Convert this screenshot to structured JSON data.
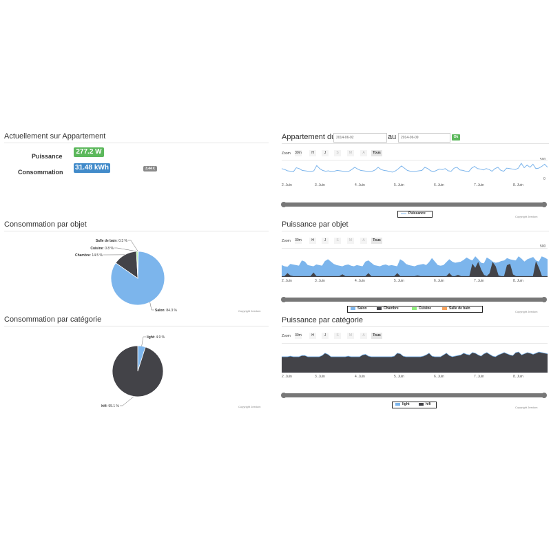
{
  "left": {
    "current": {
      "title": "Actuellement sur Appartement",
      "power_label": "Puissance",
      "power_value": "277.2 W",
      "consumption_label": "Consommation",
      "consumption_value": "31.48 kWh",
      "cost_value": "3.44 €"
    },
    "by_object": {
      "title": "Consommation par objet",
      "copyright": "Copyright Jeedom"
    },
    "by_category": {
      "title": "Consommation par catégorie",
      "copyright": "Copyright Jeedom"
    }
  },
  "right": {
    "period": {
      "title": "Appartement du",
      "from_value": "2014-06-02",
      "to_label": "au",
      "to_value": "2014-06-09",
      "ok_label": "Ok"
    },
    "power_by_object": {
      "title": "Puissance par objet"
    },
    "power_by_category": {
      "title": "Puissance par catégorie"
    },
    "zoom": {
      "label": "Zoom",
      "buttons": [
        "30m",
        "H",
        "J",
        "S",
        "M",
        "A",
        "Tous"
      ]
    },
    "x_ticks": [
      "2. Juin",
      "3. Juin",
      "4. Juin",
      "5. Juin",
      "6. Juin",
      "7. Juin",
      "8. Juin"
    ],
    "copyright": "Copyright Jeedom"
  },
  "colors": {
    "green": "#5cb85c",
    "blue": "#428bca",
    "gray": "#8a8a8a",
    "salon": "#7cb5ec",
    "chambre": "#434348",
    "cuisine": "#90ed7d",
    "salle_de_bain": "#f7a35c"
  },
  "chart_data": [
    {
      "type": "pie",
      "title": "Consommation par objet",
      "slices": [
        {
          "name": "Salon",
          "value": 84.3,
          "label": "84.3 %",
          "color": "#7cb5ec"
        },
        {
          "name": "Chambre",
          "value": 14.5,
          "label": "14.5 %",
          "color": "#434348"
        },
        {
          "name": "Cuisine",
          "value": 0.8,
          "label": "0.8 %",
          "color": "#90ed7d"
        },
        {
          "name": "Salle de bain",
          "value": 0.3,
          "label": "0.3 %",
          "color": "#f7a35c"
        }
      ]
    },
    {
      "type": "pie",
      "title": "Consommation par catégorie",
      "slices": [
        {
          "name": "light",
          "value": 4.9,
          "label": "4.9 %",
          "color": "#7cb5ec"
        },
        {
          "name": "hifi",
          "value": 95.1,
          "label": "95.1 %",
          "color": "#434348"
        }
      ]
    },
    {
      "type": "line",
      "title": "Appartement",
      "ylim": [
        0,
        500
      ],
      "y_ticks": [
        "500",
        "0"
      ],
      "series": [
        {
          "name": "Puissance",
          "color": "#7cb5ec",
          "values": [
            300,
            280,
            250,
            240,
            230,
            320,
            300,
            260,
            250,
            240,
            230,
            250,
            370,
            300,
            260,
            240,
            250,
            230,
            240,
            260,
            250,
            240,
            230,
            240,
            280,
            330,
            290,
            260,
            250,
            240,
            230,
            240,
            270,
            330,
            280,
            260,
            250,
            230,
            220,
            250,
            300,
            360,
            310,
            260,
            240,
            230,
            240,
            250,
            260,
            330,
            300,
            250,
            230,
            260,
            290,
            280,
            300,
            250,
            240,
            310,
            330,
            270,
            260,
            240,
            230,
            310,
            350,
            300,
            290,
            270,
            300,
            280,
            240,
            300,
            330,
            260,
            240,
            310,
            300,
            290,
            280,
            310,
            420,
            320,
            380,
            330,
            400,
            300,
            310,
            350,
            400,
            330
          ]
        }
      ],
      "legend": [
        "Puissance"
      ]
    },
    {
      "type": "area",
      "title": "Puissance par objet",
      "ylim": [
        0,
        500
      ],
      "y_ticks": [
        "500",
        "0"
      ],
      "series": [
        {
          "name": "Salon",
          "color": "#7cb5ec",
          "values": [
            200,
            180,
            170,
            220,
            210,
            200,
            190,
            280,
            260,
            200,
            190,
            180,
            210,
            200,
            190,
            270,
            300,
            260,
            220,
            200,
            190,
            180,
            200,
            210,
            190,
            180,
            200,
            190,
            180,
            260,
            280,
            240,
            200,
            190,
            180,
            200,
            210,
            190,
            200,
            190,
            180,
            300,
            270,
            220,
            200,
            190,
            180,
            200,
            210,
            220,
            200,
            250,
            320,
            260,
            200,
            190,
            200,
            250,
            300,
            260,
            240,
            250,
            260,
            290,
            330,
            300,
            280,
            350,
            300,
            240,
            230,
            330,
            300,
            260,
            240,
            250,
            270,
            280,
            320,
            300,
            290,
            280,
            350,
            310,
            260,
            300,
            320,
            340,
            280,
            260,
            350,
            330,
            300
          ]
        },
        {
          "name": "Chambre",
          "color": "#434348",
          "values": [
            10,
            10,
            60,
            20,
            10,
            10,
            10,
            10,
            10,
            10,
            10,
            70,
            10,
            10,
            10,
            10,
            10,
            10,
            10,
            10,
            10,
            40,
            10,
            10,
            10,
            10,
            10,
            10,
            10,
            10,
            60,
            10,
            10,
            10,
            10,
            10,
            10,
            10,
            10,
            10,
            60,
            10,
            10,
            10,
            10,
            10,
            10,
            20,
            10,
            10,
            10,
            10,
            10,
            10,
            10,
            10,
            10,
            10,
            60,
            10,
            10,
            30,
            10,
            10,
            10,
            10,
            220,
            150,
            250,
            120,
            30,
            10,
            60,
            250,
            180,
            20,
            10,
            10,
            200,
            220,
            40,
            10,
            10,
            10,
            10,
            10,
            10,
            10,
            260,
            150,
            10,
            10,
            10
          ]
        },
        {
          "name": "Cuisine",
          "color": "#90ed7d",
          "values": []
        },
        {
          "name": "Salle de bain",
          "color": "#f7a35c",
          "values": []
        }
      ],
      "legend": [
        "Salon",
        "Chambre",
        "Cuisine",
        "Salle de bain"
      ]
    },
    {
      "type": "area",
      "title": "Puissance par catégorie",
      "ylim": [
        0,
        500
      ],
      "y_ticks": [
        "500",
        "0"
      ],
      "series": [
        {
          "name": "light",
          "color": "#7cb5ec",
          "values": [
            270,
            270,
            270,
            280,
            270,
            270,
            270,
            290,
            290,
            270,
            270,
            270,
            270,
            270,
            290,
            330,
            310,
            270,
            270,
            270,
            270,
            270,
            270,
            280,
            270,
            270,
            270,
            270,
            300,
            310,
            280,
            270,
            270,
            270,
            270,
            270,
            270,
            270,
            270,
            280,
            330,
            320,
            280,
            270,
            270,
            270,
            270,
            270,
            270,
            280,
            300,
            330,
            280,
            270,
            270,
            270,
            300,
            330,
            290,
            270,
            280,
            290,
            300,
            330,
            310,
            300,
            340,
            330,
            300,
            280,
            320,
            340,
            310,
            280,
            270,
            300,
            320,
            340,
            320,
            300,
            290,
            340,
            350,
            300,
            320,
            340,
            330,
            310,
            330,
            350,
            340,
            330,
            320
          ]
        },
        {
          "name": "hifi",
          "color": "#434348",
          "values": [
            260,
            260,
            260,
            270,
            260,
            260,
            260,
            280,
            280,
            260,
            260,
            260,
            260,
            260,
            280,
            320,
            300,
            260,
            260,
            260,
            260,
            260,
            260,
            270,
            260,
            260,
            260,
            260,
            290,
            300,
            270,
            260,
            260,
            260,
            260,
            260,
            260,
            260,
            260,
            270,
            320,
            310,
            270,
            260,
            260,
            260,
            260,
            260,
            260,
            270,
            290,
            320,
            270,
            260,
            260,
            260,
            290,
            320,
            280,
            260,
            270,
            280,
            290,
            320,
            300,
            290,
            330,
            320,
            290,
            270,
            310,
            330,
            300,
            270,
            260,
            290,
            310,
            330,
            310,
            290,
            280,
            330,
            340,
            290,
            310,
            330,
            320,
            300,
            320,
            340,
            330,
            320,
            310
          ]
        }
      ],
      "legend": [
        "light",
        "hifi"
      ]
    }
  ]
}
